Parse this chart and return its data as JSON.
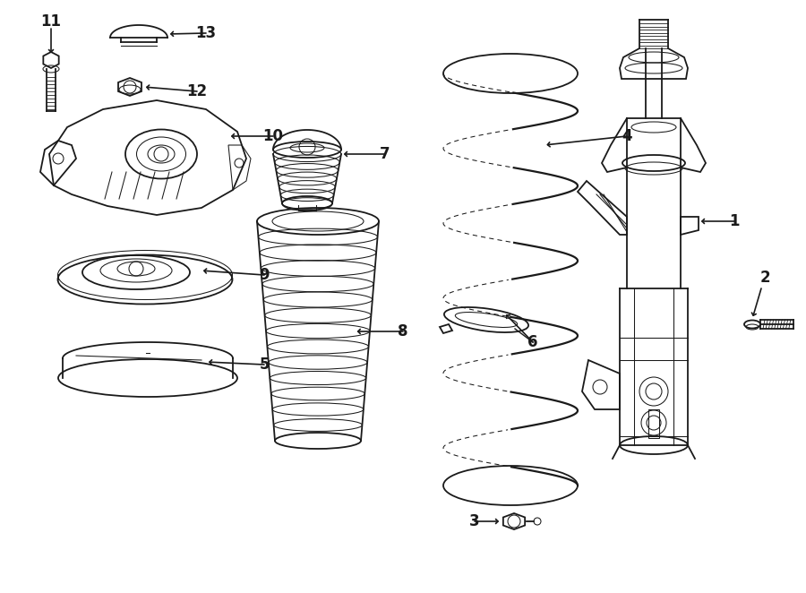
{
  "bg_color": "#ffffff",
  "lc": "#1a1a1a",
  "lw": 1.3,
  "tlw": 0.75,
  "fs": 12,
  "fw": "bold"
}
